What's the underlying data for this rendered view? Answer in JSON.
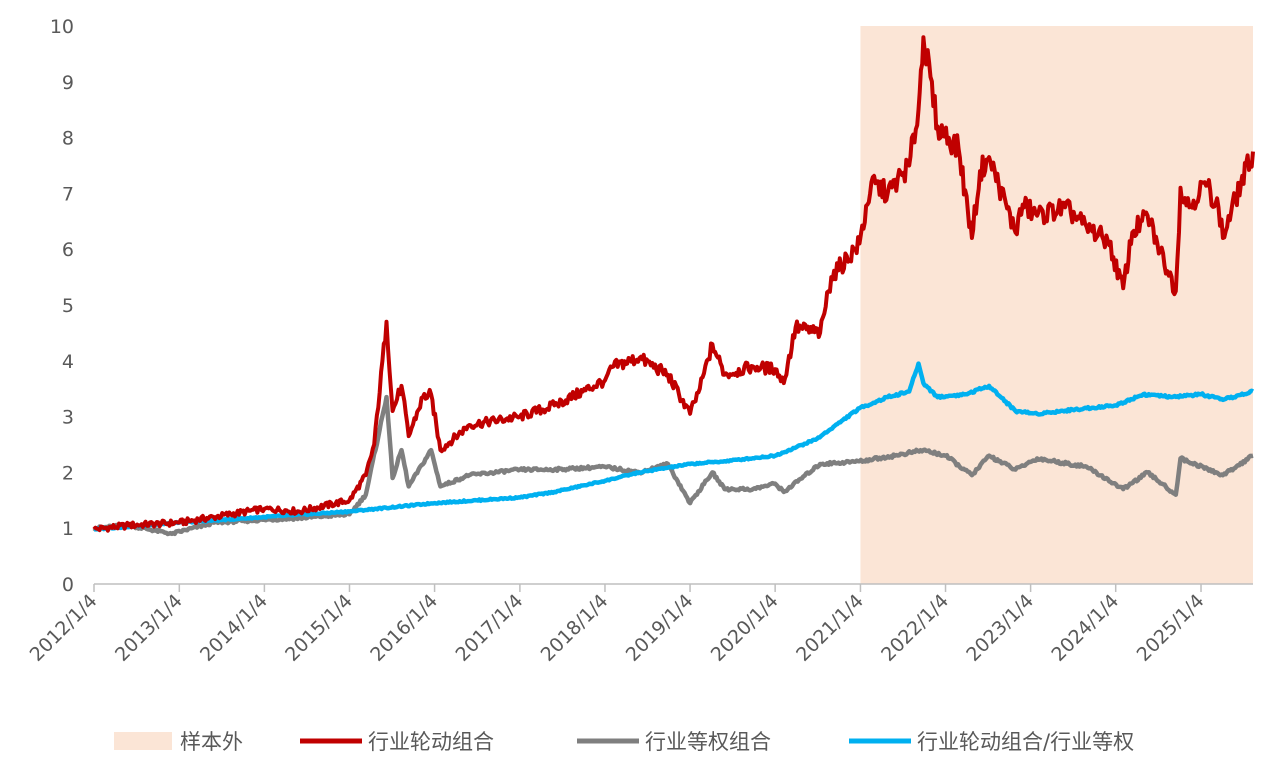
{
  "chart_data": {
    "type": "line",
    "title": "",
    "xlabel": "",
    "ylabel": "",
    "ylim": [
      0,
      10
    ],
    "yticks": [
      0,
      1,
      2,
      3,
      4,
      5,
      6,
      7,
      8,
      9,
      10
    ],
    "xlim": [
      "2012-01-04",
      "2025-08-15"
    ],
    "xtick_labels": [
      "2012/1/4",
      "2013/1/4",
      "2014/1/4",
      "2015/1/4",
      "2016/1/4",
      "2017/1/4",
      "2018/1/4",
      "2019/1/4",
      "2020/1/4",
      "2021/1/4",
      "2022/1/4",
      "2023/1/4",
      "2024/1/4",
      "2025/1/4"
    ],
    "xtick_dates": [
      "2012-01-04",
      "2013-01-04",
      "2014-01-04",
      "2015-01-04",
      "2016-01-04",
      "2017-01-04",
      "2018-01-04",
      "2019-01-04",
      "2020-01-04",
      "2021-01-04",
      "2022-01-04",
      "2023-01-04",
      "2024-01-04",
      "2025-01-04"
    ],
    "grid": false,
    "legend_position": "bottom",
    "shaded_region": {
      "name": "样本外",
      "start": "2021-01-04",
      "end": "2025-08-15",
      "color": "#FBE5D6"
    },
    "series": [
      {
        "name": "行业轮动组合",
        "color": "#C00000",
        "x": [
          "2012-01-04",
          "2012-06-01",
          "2013-01-04",
          "2013-06-01",
          "2014-01-04",
          "2014-06-01",
          "2015-01-04",
          "2015-03-15",
          "2015-04-20",
          "2015-06-12",
          "2015-07-08",
          "2015-08-15",
          "2015-09-15",
          "2015-11-15",
          "2015-12-20",
          "2016-01-29",
          "2016-06-01",
          "2017-01-04",
          "2017-06-01",
          "2017-10-01",
          "2018-01-04",
          "2018-02-10",
          "2018-06-01",
          "2018-10-01",
          "2019-01-04",
          "2019-02-15",
          "2019-04-10",
          "2019-06-01",
          "2019-10-01",
          "2020-01-04",
          "2020-02-10",
          "2020-04-01",
          "2020-07-15",
          "2020-09-01",
          "2020-12-31",
          "2021-02-20",
          "2021-05-01",
          "2021-08-01",
          "2021-09-10",
          "2021-10-01",
          "2021-12-01",
          "2022-03-01",
          "2022-04-27",
          "2022-06-01",
          "2022-07-10",
          "2022-10-31",
          "2022-12-01",
          "2023-02-01",
          "2023-06-01",
          "2023-09-01",
          "2023-12-01",
          "2024-02-05",
          "2024-03-15",
          "2024-05-20",
          "2024-07-01",
          "2024-09-18",
          "2024-10-08",
          "2024-11-15",
          "2025-01-20",
          "2025-03-20",
          "2025-04-08",
          "2025-06-01",
          "2025-08-15"
        ],
        "values": [
          0.98,
          1.05,
          1.1,
          1.2,
          1.35,
          1.3,
          1.5,
          1.95,
          2.5,
          4.7,
          3.1,
          3.55,
          2.65,
          3.35,
          3.4,
          2.4,
          2.85,
          3.0,
          3.2,
          3.45,
          3.65,
          3.9,
          4.05,
          3.75,
          3.05,
          3.5,
          4.3,
          3.75,
          3.9,
          3.85,
          3.6,
          4.6,
          4.5,
          5.5,
          6.1,
          7.2,
          7.0,
          7.5,
          8.5,
          9.8,
          8.2,
          7.8,
          6.2,
          7.4,
          7.65,
          6.3,
          6.8,
          6.6,
          6.75,
          6.4,
          6.15,
          5.3,
          6.3,
          6.6,
          6.1,
          5.25,
          7.1,
          6.75,
          7.2,
          6.75,
          6.2,
          6.9,
          7.75
        ]
      },
      {
        "name": "行业等权组合",
        "color": "#7F7F7F",
        "x": [
          "2012-01-04",
          "2012-06-01",
          "2012-12-03",
          "2013-06-01",
          "2014-01-04",
          "2014-06-01",
          "2015-01-04",
          "2015-03-15",
          "2015-06-12",
          "2015-07-08",
          "2015-08-15",
          "2015-09-15",
          "2015-12-20",
          "2016-01-29",
          "2016-06-01",
          "2017-01-04",
          "2017-06-01",
          "2018-01-04",
          "2018-06-01",
          "2018-10-01",
          "2019-01-04",
          "2019-04-10",
          "2019-06-01",
          "2019-10-01",
          "2020-01-04",
          "2020-02-10",
          "2020-07-15",
          "2020-12-31",
          "2021-06-01",
          "2021-10-01",
          "2022-01-04",
          "2022-04-27",
          "2022-07-10",
          "2022-10-31",
          "2023-02-01",
          "2023-09-01",
          "2024-02-05",
          "2024-05-20",
          "2024-09-18",
          "2024-10-08",
          "2025-04-08",
          "2025-08-15"
        ],
        "values": [
          1.0,
          1.05,
          0.9,
          1.1,
          1.15,
          1.18,
          1.25,
          1.6,
          3.35,
          1.9,
          2.4,
          1.75,
          2.4,
          1.75,
          1.95,
          2.05,
          2.05,
          2.1,
          2.0,
          2.15,
          1.45,
          2.0,
          1.7,
          1.7,
          1.8,
          1.65,
          2.15,
          2.2,
          2.3,
          2.4,
          2.3,
          1.95,
          2.3,
          2.05,
          2.25,
          2.1,
          1.7,
          2.0,
          1.6,
          2.25,
          1.95,
          2.3
        ]
      },
      {
        "name": "行业轮动组合/行业等权",
        "color": "#00B0F0",
        "x": [
          "2012-01-04",
          "2013-01-04",
          "2014-01-04",
          "2015-01-04",
          "2016-01-04",
          "2017-01-04",
          "2017-06-01",
          "2018-01-04",
          "2018-06-01",
          "2019-01-04",
          "2019-06-01",
          "2020-01-04",
          "2020-07-01",
          "2020-12-31",
          "2021-05-01",
          "2021-08-01",
          "2021-09-10",
          "2021-10-01",
          "2021-12-01",
          "2022-04-01",
          "2022-07-10",
          "2022-10-31",
          "2023-02-01",
          "2023-09-01",
          "2024-01-04",
          "2024-05-01",
          "2024-09-01",
          "2025-01-04",
          "2025-04-08",
          "2025-08-15"
        ],
        "values": [
          0.98,
          1.1,
          1.2,
          1.3,
          1.45,
          1.55,
          1.65,
          1.85,
          2.0,
          2.15,
          2.2,
          2.3,
          2.6,
          3.15,
          3.35,
          3.45,
          3.95,
          3.6,
          3.35,
          3.4,
          3.55,
          3.1,
          3.05,
          3.15,
          3.2,
          3.4,
          3.35,
          3.4,
          3.3,
          3.45
        ]
      }
    ]
  }
}
